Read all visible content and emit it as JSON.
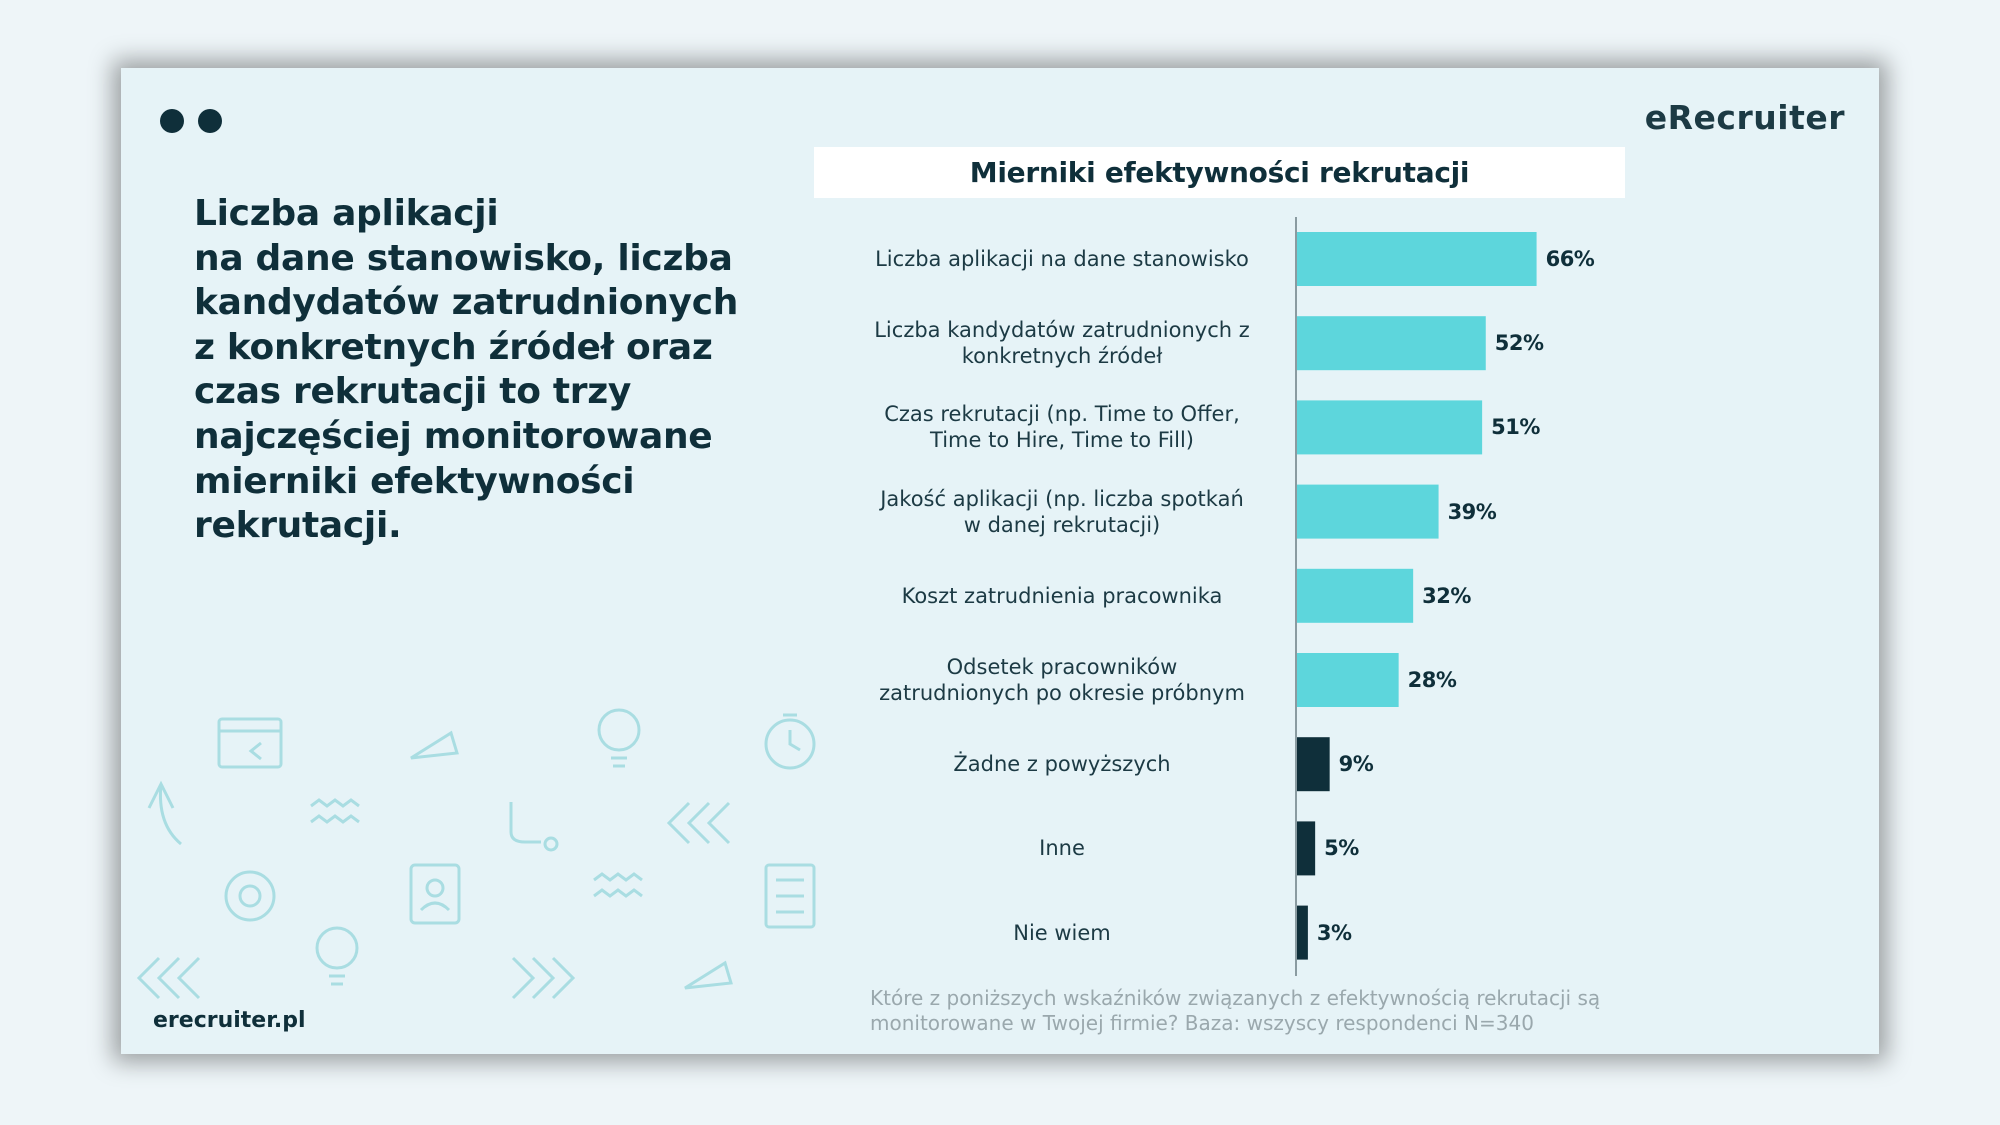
{
  "logo": "eRecruiter",
  "headline": "Liczba aplikacji\nna dane stanowisko, liczba\nkandydatów zatrudnionych\nz konkretnych źródeł oraz\nczas rekrutacji to trzy\nnajczęściej monitorowane\nmierniki efektywności\nrekrutacji.",
  "footer": "erecruiter.pl",
  "chart_data": {
    "type": "bar",
    "orientation": "horizontal",
    "title": "Mierniki efektywności rekrutacji",
    "categories": [
      "Liczba aplikacji na dane stanowisko",
      "Liczba kandydatów zatrudnionych z\nkonkretnych źródeł",
      "Czas rekrutacji (np. Time to Offer,\nTime to Hire, Time to Fill)",
      "Jakość aplikacji (np. liczba spotkań\nw danej rekrutacji)",
      "Koszt zatrudnienia pracownika",
      "Odsetek pracowników\nzatrudnionych po okresie próbnym",
      "Żadne z powyższych",
      "Inne",
      "Nie wiem"
    ],
    "values": [
      66,
      52,
      51,
      39,
      32,
      28,
      9,
      5,
      3
    ],
    "value_labels": [
      "66%",
      "52%",
      "51%",
      "39%",
      "32%",
      "28%",
      "9%",
      "5%",
      "3%"
    ],
    "colors": [
      "#5dd6dc",
      "#5dd6dc",
      "#5dd6dc",
      "#5dd6dc",
      "#5dd6dc",
      "#5dd6dc",
      "#0f2f3a",
      "#0f2f3a",
      "#0f2f3a"
    ],
    "note": "Które z poniższych wskaźników związanych z efektywnością rekrutacji są monitorowane w Twojej firmie? Baza: wszyscy respondenci N=340"
  }
}
